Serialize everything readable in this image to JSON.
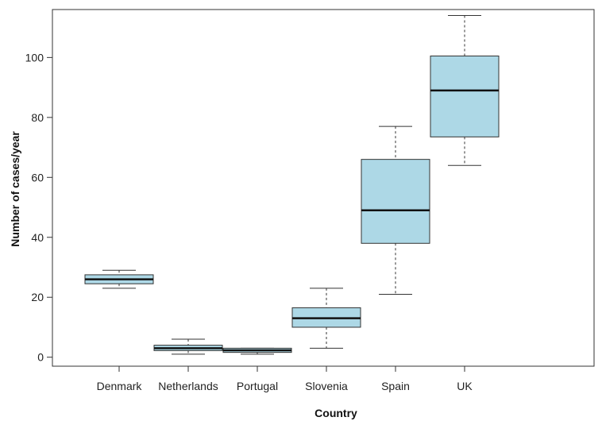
{
  "chart_data": {
    "type": "box",
    "xlabel": "Country",
    "ylabel": "Number of cases/year",
    "ylim": [
      -3,
      116
    ],
    "yticks": [
      0,
      20,
      40,
      60,
      80,
      100
    ],
    "categories": [
      "Denmark",
      "Netherlands",
      "Portugal",
      "Slovenia",
      "Spain",
      "UK"
    ],
    "boxes": [
      {
        "min": 23,
        "q1": 24.5,
        "median": 26,
        "q3": 27.5,
        "max": 29
      },
      {
        "min": 1,
        "q1": 2.2,
        "median": 3,
        "q3": 4,
        "max": 6
      },
      {
        "min": 1,
        "q1": 1.6,
        "median": 2.3,
        "q3": 3,
        "max": 3
      },
      {
        "min": 3,
        "q1": 10,
        "median": 13,
        "q3": 16.5,
        "max": 23
      },
      {
        "min": 21,
        "q1": 38,
        "median": 49,
        "q3": 66,
        "max": 77
      },
      {
        "min": 64,
        "q1": 73.5,
        "median": 89,
        "q3": 100.5,
        "max": 114
      }
    ],
    "box_fill": "#add8e6",
    "grid": false,
    "legend": "none"
  }
}
